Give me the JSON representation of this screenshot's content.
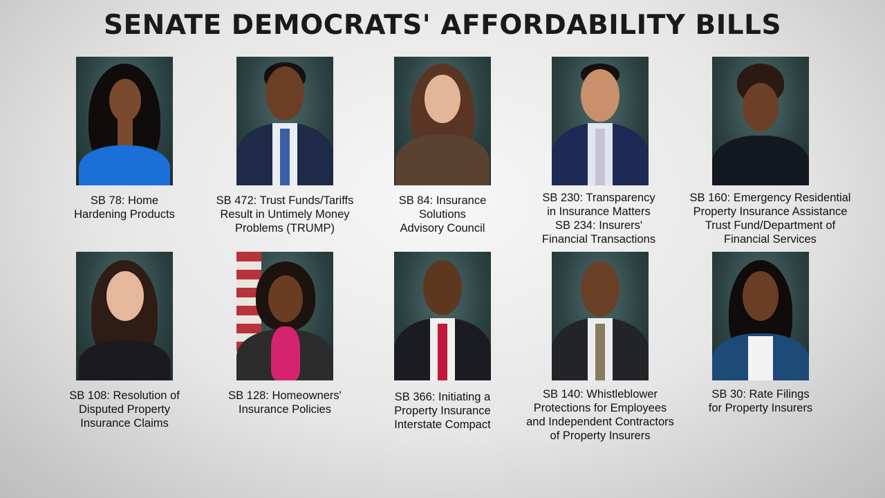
{
  "title": "SENATE DEMOCRATS' AFFORDABILITY BILLS",
  "senators": [
    {
      "caption": "SB 78: Home\nHardening Products",
      "skin": "#7a4a2e",
      "hair": "#0f0c0b",
      "body": "#1b6fd6"
    },
    {
      "caption": "SB 472: Trust Funds/Tariffs\nResult in Untimely Money\nProblems (TRUMP)",
      "skin": "#6b3f26",
      "hair": "#151110",
      "body": "#1f2a48"
    },
    {
      "caption": "SB 84: Insurance\nSolutions\nAdvisory Council",
      "skin": "#e3b69a",
      "hair": "#5a3524",
      "body": "#5b4230"
    },
    {
      "caption": "SB 230: Transparency\nin Insurance Matters\nSB 234: Insurers'\nFinancial Transactions",
      "skin": "#c9906c",
      "hair": "#141010",
      "body": "#1c2a55"
    },
    {
      "caption": "SB 160: Emergency Residential\nProperty Insurance Assistance\nTrust Fund/Department of\nFinancial Services",
      "skin": "#6e3f28",
      "hair": "#2a1a12",
      "body": "#141820"
    },
    {
      "caption": "SB 108: Resolution of\nDisputed Property\nInsurance Claims",
      "skin": "#e5b89c",
      "hair": "#2e1c15",
      "body": "#1a1a1e"
    },
    {
      "caption": "SB 128: Homeowners'\nInsurance Policies",
      "skin": "#6a3c24",
      "hair": "#1d130e",
      "body": "#2c2c2c"
    },
    {
      "caption": "SB 366: Initiating a\nProperty Insurance\nInterstate Compact",
      "skin": "#5e3720",
      "hair": "#120e0c",
      "body": "#1b1b22"
    },
    {
      "caption": "SB 140: Whistleblower\nProtections for Employees\nand Independent Contractors\nof Property Insurers",
      "skin": "#6b4028",
      "hair": "#1a1512",
      "body": "#222428"
    },
    {
      "caption": "SB 30: Rate Filings\nfor Property Insurers",
      "skin": "#6a3d25",
      "hair": "#0f0c0b",
      "body": "#1e4a78"
    }
  ]
}
